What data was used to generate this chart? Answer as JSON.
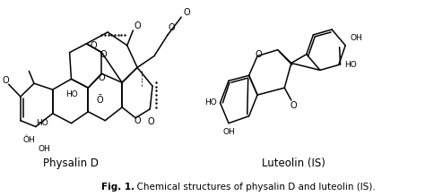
{
  "bg_color": "#ffffff",
  "fig_width": 4.74,
  "fig_height": 2.19,
  "dpi": 100,
  "label_left": "Physalin D",
  "label_right": "Luteolin (IS)",
  "caption_bold": "Fig. 1.",
  "caption_rest": "  Chemical structures of physalin D and luteolin (IS).",
  "caption_fontsize": 7.5,
  "label_fontsize": 8.5,
  "struct_lw": 1.1,
  "struct_color": "#000000"
}
